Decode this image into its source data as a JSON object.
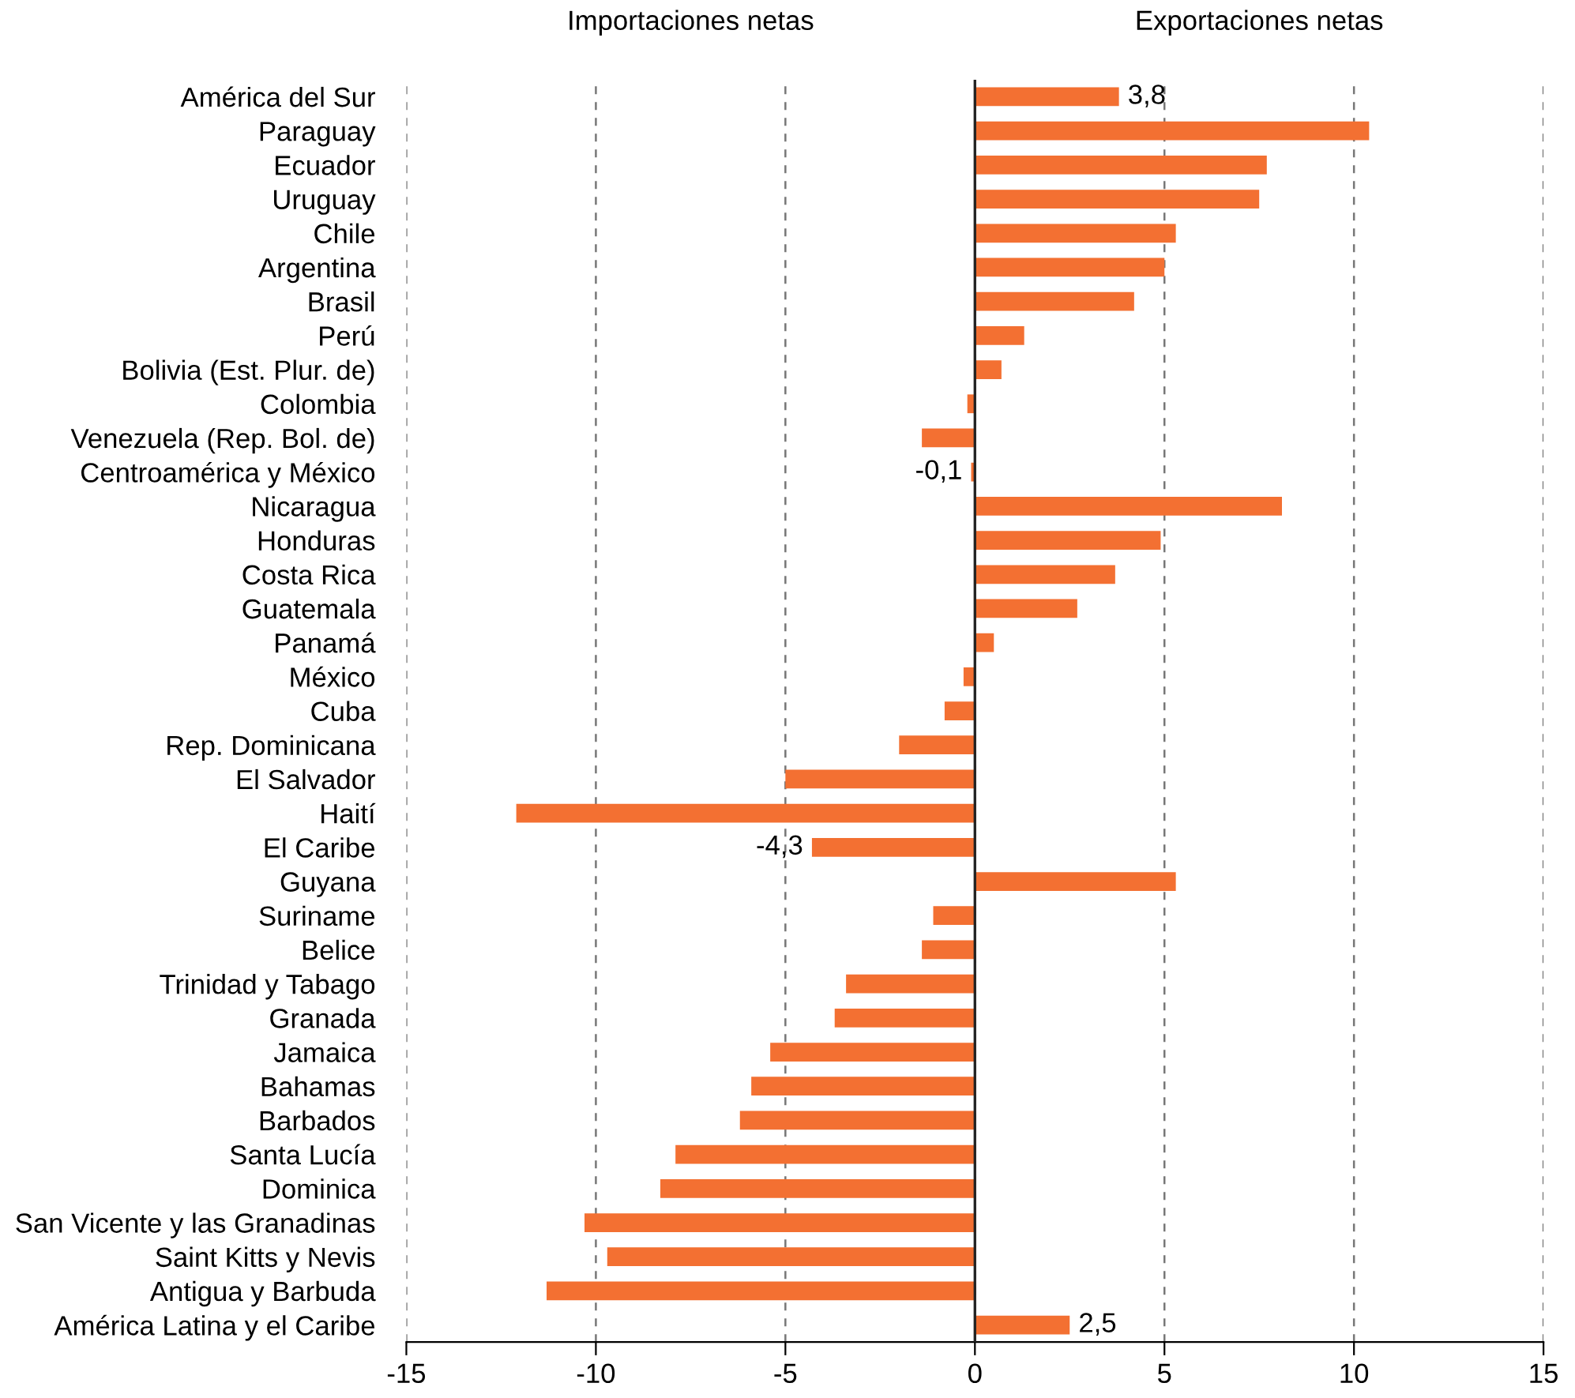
{
  "chart_data": {
    "type": "bar",
    "orientation": "horizontal",
    "categories": [
      "América del Sur",
      "Paraguay",
      "Ecuador",
      "Uruguay",
      "Chile",
      "Argentina",
      "Brasil",
      "Perú",
      "Bolivia (Est. Plur. de)",
      "Colombia",
      "Venezuela (Rep. Bol. de)",
      "Centroamérica y México",
      "Nicaragua",
      "Honduras",
      "Costa Rica",
      "Guatemala",
      "Panamá",
      "México",
      "Cuba",
      "Rep. Dominicana",
      "El Salvador",
      "Haití",
      "El Caribe",
      "Guyana",
      "Suriname",
      "Belice",
      "Trinidad y Tabago",
      "Granada",
      "Jamaica",
      "Bahamas",
      "Barbados",
      "Santa Lucía",
      "Dominica",
      "San Vicente y las Granadinas",
      "Saint Kitts y Nevis",
      "Antigua y Barbuda",
      "América Latina y el Caribe"
    ],
    "values": [
      3.8,
      10.4,
      7.7,
      7.5,
      5.3,
      5.0,
      4.2,
      1.3,
      0.7,
      -0.2,
      -1.4,
      -0.1,
      8.1,
      4.9,
      3.7,
      2.7,
      0.5,
      -0.3,
      -0.8,
      -2.0,
      -5.0,
      -12.1,
      -4.3,
      5.3,
      -1.1,
      -1.4,
      -3.4,
      -3.7,
      -5.4,
      -5.9,
      -6.2,
      -7.9,
      -8.3,
      -10.3,
      -9.7,
      -11.3,
      2.5
    ],
    "value_labels": [
      "3,8",
      null,
      null,
      null,
      null,
      null,
      null,
      null,
      null,
      null,
      null,
      "-0,1",
      null,
      null,
      null,
      null,
      null,
      null,
      null,
      null,
      null,
      null,
      "-4,3",
      null,
      null,
      null,
      null,
      null,
      null,
      null,
      null,
      null,
      null,
      null,
      null,
      null,
      "2,5"
    ],
    "color": "#f37032",
    "xlim": [
      -15,
      15
    ],
    "xticks": [
      -15,
      -10,
      -5,
      0,
      5,
      10,
      15
    ],
    "grid": "x",
    "annotations": [
      "Importaciones netas",
      "Exportaciones netas"
    ]
  }
}
